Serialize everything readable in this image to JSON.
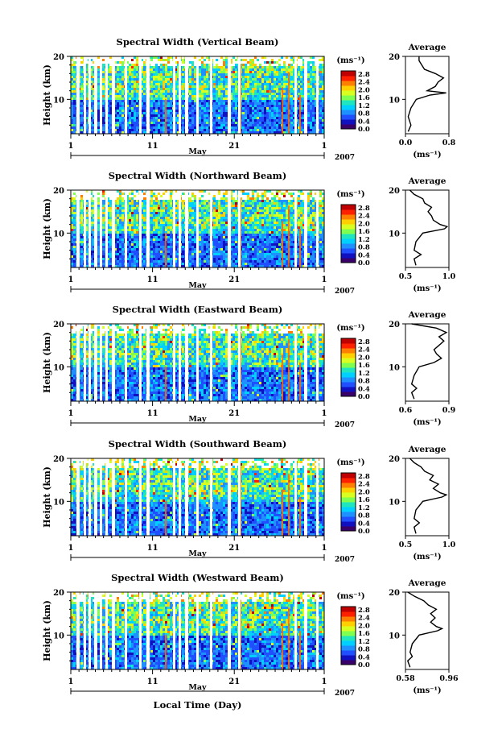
{
  "figure": {
    "xaxis_title": "Local Time (Day)",
    "month_label": "May",
    "year_label": "2007",
    "xtick_labels": [
      "1",
      "11",
      "21",
      "1"
    ],
    "colorbar_unit": "(ms⁻¹)",
    "colorbar_ticks": [
      "2.8",
      "2.4",
      "2.0",
      "1.6",
      "1.2",
      "0.8",
      "0.4",
      "0.0"
    ],
    "avg_title": "Average",
    "avg_xlabel": "(ms⁻¹)",
    "colormap": [
      "#3a006a",
      "#1010c0",
      "#1f4fff",
      "#1e90ff",
      "#00d0ff",
      "#20e6c0",
      "#7fff50",
      "#d8ff20",
      "#ffd000",
      "#ff8000",
      "#ff2000",
      "#c00000"
    ]
  },
  "chart_data": [
    {
      "type": "heatmap",
      "title": "Spectral Width (Vertical Beam)",
      "ylabel": "Height (km)",
      "y_ticks": [
        "20",
        "10"
      ],
      "xlim_days": [
        1,
        32
      ],
      "ylim_km": [
        2,
        20
      ],
      "zlim": [
        0,
        2.8
      ],
      "avg_profile": {
        "xlim": [
          0.0,
          0.8
        ],
        "x_tick_labels": [
          "0.0",
          "0.8"
        ],
        "y_ticks": [
          "20",
          "10"
        ],
        "heights": [
          2.5,
          4,
          6,
          8,
          10,
          11,
          11.5,
          12,
          13,
          14,
          15,
          16,
          17,
          18,
          19,
          20
        ],
        "values": [
          0.05,
          0.1,
          0.05,
          0.1,
          0.2,
          0.45,
          0.75,
          0.4,
          0.55,
          0.6,
          0.7,
          0.55,
          0.35,
          0.3,
          0.25,
          0.25
        ]
      }
    },
    {
      "type": "heatmap",
      "title": "Spectral Width (Northward Beam)",
      "ylabel": "Height (km)",
      "y_ticks": [
        "20",
        "10"
      ],
      "xlim_days": [
        1,
        32
      ],
      "ylim_km": [
        2,
        20
      ],
      "zlim": [
        0,
        2.8
      ],
      "avg_profile": {
        "xlim": [
          0.5,
          1.0
        ],
        "x_tick_labels": [
          "0.5",
          "1.0"
        ],
        "y_ticks": [
          "20",
          "10"
        ],
        "heights": [
          2.5,
          4,
          5,
          6,
          8,
          10,
          11,
          11.5,
          12,
          13,
          14,
          15,
          16,
          17,
          18,
          19,
          20
        ],
        "values": [
          0.62,
          0.6,
          0.68,
          0.6,
          0.62,
          0.7,
          0.95,
          0.98,
          0.9,
          0.82,
          0.8,
          0.76,
          0.8,
          0.72,
          0.7,
          0.6,
          0.55
        ]
      }
    },
    {
      "type": "heatmap",
      "title": "Spectral Width (Eastward Beam)",
      "ylabel": "Height (km)",
      "y_ticks": [
        "20",
        "10"
      ],
      "xlim_days": [
        1,
        32
      ],
      "ylim_km": [
        2,
        20
      ],
      "zlim": [
        0,
        2.8
      ],
      "avg_profile": {
        "xlim": [
          0.55,
          0.9
        ],
        "x_tick_labels": [
          "0.6",
          "0.9"
        ],
        "y_ticks": [
          "20",
          "10"
        ],
        "heights": [
          2.5,
          4,
          5,
          6,
          8,
          10,
          11,
          12,
          13,
          14,
          15,
          16,
          17,
          18,
          19,
          20
        ],
        "values": [
          0.62,
          0.6,
          0.64,
          0.6,
          0.62,
          0.66,
          0.78,
          0.84,
          0.8,
          0.78,
          0.82,
          0.86,
          0.82,
          0.88,
          0.8,
          0.6
        ]
      }
    },
    {
      "type": "heatmap",
      "title": "Spectral Width (Southward Beam)",
      "ylabel": "Height (km)",
      "y_ticks": [
        "20",
        "10"
      ],
      "xlim_days": [
        1,
        32
      ],
      "ylim_km": [
        2,
        20
      ],
      "zlim": [
        0,
        2.8
      ],
      "avg_profile": {
        "xlim": [
          0.5,
          1.0
        ],
        "x_tick_labels": [
          "0.5",
          "1.0"
        ],
        "y_ticks": [
          "20",
          "10"
        ],
        "heights": [
          2.5,
          4,
          5,
          6,
          8,
          10,
          11,
          11.5,
          12,
          13,
          14,
          15,
          16,
          17,
          18,
          19,
          20
        ],
        "values": [
          0.62,
          0.6,
          0.66,
          0.6,
          0.62,
          0.7,
          0.92,
          0.97,
          0.9,
          0.82,
          0.88,
          0.78,
          0.82,
          0.72,
          0.68,
          0.6,
          0.55
        ]
      }
    },
    {
      "type": "heatmap",
      "title": "Spectral Width (Westward Beam)",
      "ylabel": "Height (km)",
      "y_ticks": [
        "20",
        "10"
      ],
      "xlim_days": [
        1,
        32
      ],
      "ylim_km": [
        2,
        20
      ],
      "zlim": [
        0,
        2.8
      ],
      "avg_profile": {
        "xlim": [
          0.58,
          0.96
        ],
        "x_tick_labels": [
          "0.58",
          "0.96"
        ],
        "y_ticks": [
          "20",
          "10"
        ],
        "heights": [
          2.5,
          4,
          5,
          6,
          8,
          10,
          11,
          11.5,
          12,
          13,
          14,
          15,
          16,
          17,
          18,
          19,
          20
        ],
        "values": [
          0.62,
          0.6,
          0.64,
          0.62,
          0.64,
          0.7,
          0.86,
          0.9,
          0.85,
          0.8,
          0.84,
          0.8,
          0.85,
          0.78,
          0.74,
          0.66,
          0.6
        ]
      }
    }
  ]
}
